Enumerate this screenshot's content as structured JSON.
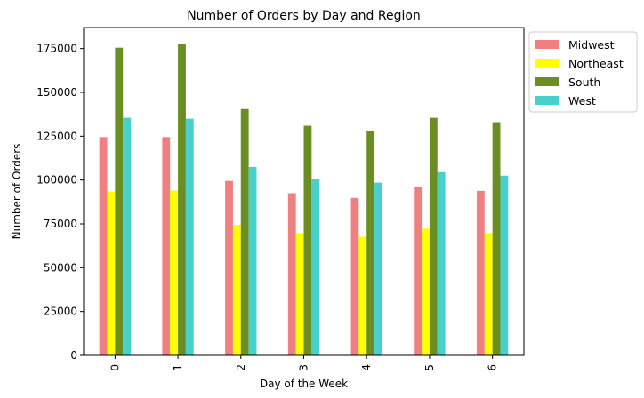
{
  "chart_data": {
    "type": "bar",
    "title": "Number of Orders by Day and Region",
    "xlabel": "Day of the Week",
    "ylabel": "Number of Orders",
    "categories": [
      "0",
      "1",
      "2",
      "3",
      "4",
      "5",
      "6"
    ],
    "ylim": [
      0,
      187000
    ],
    "yticks": [
      0,
      25000,
      50000,
      75000,
      100000,
      125000,
      150000,
      175000
    ],
    "grid": false,
    "legend_position": "upper-right-outside",
    "series": [
      {
        "name": "Midwest",
        "color": "#f08080",
        "values": [
          124500,
          124500,
          99500,
          92500,
          89800,
          95800,
          93800
        ]
      },
      {
        "name": "Northeast",
        "color": "#ffff00",
        "values": [
          93500,
          94000,
          74500,
          69800,
          67600,
          72300,
          69800
        ]
      },
      {
        "name": "South",
        "color": "#6b8e23",
        "values": [
          175500,
          177500,
          140500,
          131000,
          128000,
          135500,
          133000
        ]
      },
      {
        "name": "West",
        "color": "#48d1cc",
        "values": [
          135500,
          135000,
          107500,
          100500,
          98500,
          104500,
          102500
        ]
      }
    ]
  }
}
